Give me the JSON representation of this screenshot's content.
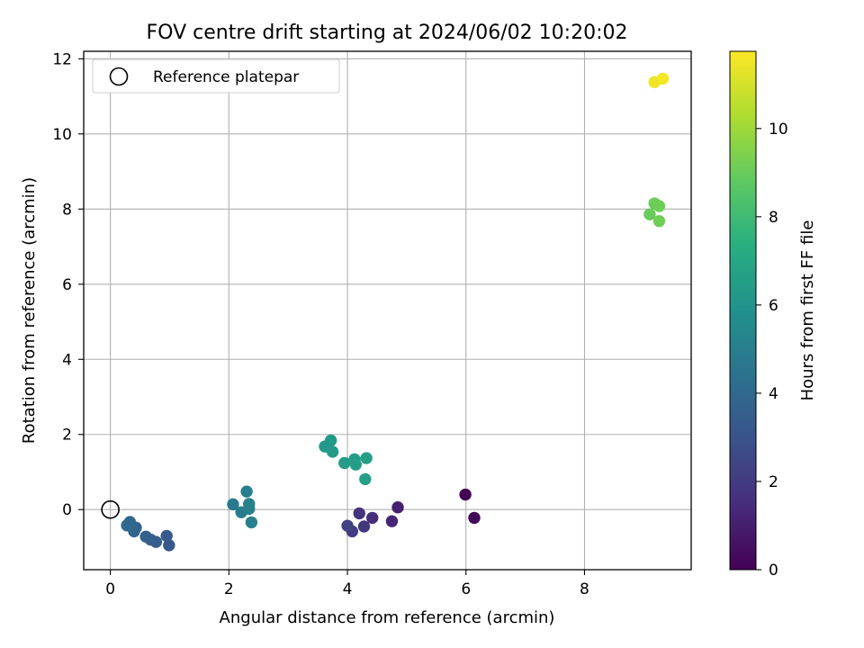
{
  "chart_data": {
    "type": "scatter",
    "title": "FOV centre drift starting at 2024/06/02 10:20:02",
    "xlabel": "Angular distance from reference (arcmin)",
    "ylabel": "Rotation from reference (arcmin)",
    "xlim": [
      -0.45,
      9.8
    ],
    "ylim": [
      -1.6,
      12.2
    ],
    "xticks": [
      0,
      2,
      4,
      6,
      8
    ],
    "yticks": [
      0,
      2,
      4,
      6,
      8,
      10,
      12
    ],
    "grid": true,
    "legend": {
      "position": "top-left",
      "entries": [
        "Reference platepar"
      ]
    },
    "reference_point": {
      "x": 0,
      "y": 0
    },
    "colorbar": {
      "label": "Hours from first FF file",
      "colormap": "viridis",
      "range": [
        0,
        11.75
      ],
      "ticks": [
        0,
        2,
        4,
        6,
        8,
        10
      ]
    },
    "points": [
      {
        "x": 5.99,
        "y": 0.4,
        "hours": 0.0
      },
      {
        "x": 6.14,
        "y": -0.22,
        "hours": 0.2
      },
      {
        "x": 4.85,
        "y": 0.06,
        "hours": 1.0
      },
      {
        "x": 4.75,
        "y": -0.31,
        "hours": 1.2
      },
      {
        "x": 4.42,
        "y": -0.22,
        "hours": 1.5
      },
      {
        "x": 4.2,
        "y": -0.1,
        "hours": 1.7
      },
      {
        "x": 4.28,
        "y": -0.45,
        "hours": 1.9
      },
      {
        "x": 4.08,
        "y": -0.58,
        "hours": 2.1
      },
      {
        "x": 4.0,
        "y": -0.43,
        "hours": 2.3
      },
      {
        "x": 0.99,
        "y": -0.95,
        "hours": 3.2
      },
      {
        "x": 0.95,
        "y": -0.7,
        "hours": 3.3
      },
      {
        "x": 0.77,
        "y": -0.86,
        "hours": 3.4
      },
      {
        "x": 0.68,
        "y": -0.8,
        "hours": 3.5
      },
      {
        "x": 0.6,
        "y": -0.72,
        "hours": 3.6
      },
      {
        "x": 0.43,
        "y": -0.48,
        "hours": 3.7
      },
      {
        "x": 0.4,
        "y": -0.58,
        "hours": 3.8
      },
      {
        "x": 0.33,
        "y": -0.33,
        "hours": 3.9
      },
      {
        "x": 0.28,
        "y": -0.42,
        "hours": 4.0
      },
      {
        "x": 2.07,
        "y": 0.14,
        "hours": 4.8
      },
      {
        "x": 2.21,
        "y": -0.07,
        "hours": 4.9
      },
      {
        "x": 2.3,
        "y": 0.48,
        "hours": 5.0
      },
      {
        "x": 2.34,
        "y": 0.15,
        "hours": 5.05
      },
      {
        "x": 2.34,
        "y": 0.02,
        "hours": 5.1
      },
      {
        "x": 2.38,
        "y": -0.34,
        "hours": 5.15
      },
      {
        "x": 3.62,
        "y": 1.68,
        "hours": 6.3
      },
      {
        "x": 3.72,
        "y": 1.84,
        "hours": 6.35
      },
      {
        "x": 3.75,
        "y": 1.54,
        "hours": 6.4
      },
      {
        "x": 3.95,
        "y": 1.24,
        "hours": 6.45
      },
      {
        "x": 4.12,
        "y": 1.34,
        "hours": 6.5
      },
      {
        "x": 4.14,
        "y": 1.2,
        "hours": 6.55
      },
      {
        "x": 4.32,
        "y": 1.37,
        "hours": 6.6
      },
      {
        "x": 4.3,
        "y": 0.81,
        "hours": 6.65
      },
      {
        "x": 9.1,
        "y": 7.86,
        "hours": 9.0
      },
      {
        "x": 9.18,
        "y": 8.15,
        "hours": 9.05
      },
      {
        "x": 9.26,
        "y": 8.08,
        "hours": 9.1
      },
      {
        "x": 9.26,
        "y": 7.68,
        "hours": 9.15
      },
      {
        "x": 9.18,
        "y": 11.38,
        "hours": 11.5
      },
      {
        "x": 9.32,
        "y": 11.47,
        "hours": 11.6
      }
    ]
  }
}
